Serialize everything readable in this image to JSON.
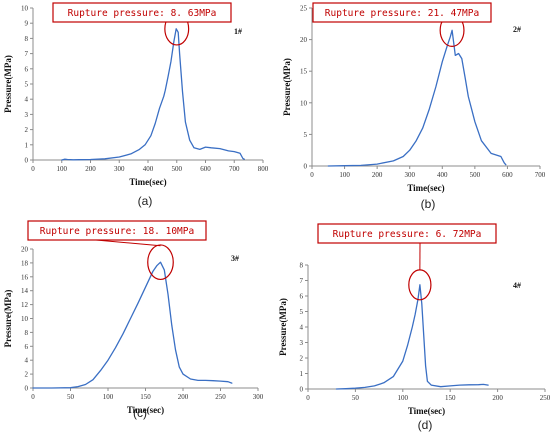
{
  "figure": {
    "colors": {
      "line": "#3a6fc4",
      "annotation": "#c00000",
      "axis": "#8c8c8c"
    }
  },
  "chart_data": [
    {
      "type": "line",
      "panel_tag": "(a)",
      "sample_id": "1#",
      "annotation": "Rupture pressure: 8. 63MPa",
      "xlabel": "Time(sec)",
      "ylabel": "Pressure(MPa)",
      "xlim": [
        0,
        800
      ],
      "ylim": [
        0,
        10
      ],
      "xticks": [
        0,
        100,
        200,
        300,
        400,
        500,
        600,
        700,
        800
      ],
      "yticks": [
        0,
        1,
        2,
        3,
        4,
        5,
        6,
        7,
        8,
        9,
        10
      ],
      "peak": [
        500,
        8.63
      ],
      "series": [
        {
          "x": [
            100,
            110,
            120,
            140,
            160,
            200,
            250,
            300,
            340,
            370,
            390,
            410,
            425,
            440,
            455,
            460,
            470,
            480,
            490,
            498,
            505,
            510,
            520,
            530,
            545,
            560,
            580,
            600,
            620,
            650,
            680,
            700,
            720,
            730,
            735
          ],
          "y": [
            0.0,
            0.05,
            0.03,
            0.01,
            0.02,
            0.03,
            0.08,
            0.2,
            0.4,
            0.7,
            1.0,
            1.6,
            2.4,
            3.4,
            4.2,
            4.6,
            5.5,
            6.5,
            7.8,
            8.63,
            8.4,
            7.0,
            4.5,
            2.5,
            1.3,
            0.8,
            0.7,
            0.85,
            0.8,
            0.75,
            0.6,
            0.55,
            0.45,
            0.1,
            0.05
          ]
        }
      ]
    },
    {
      "type": "line",
      "panel_tag": "(b)",
      "sample_id": "2#",
      "annotation": "Rupture pressure: 21. 47MPa",
      "xlabel": "Time(sec)",
      "ylabel": "Pressure(MPa)",
      "xlim": [
        0,
        700
      ],
      "ylim": [
        0,
        25
      ],
      "xticks": [
        0,
        100,
        200,
        300,
        400,
        500,
        600,
        700
      ],
      "yticks": [
        0,
        5,
        10,
        15,
        20,
        25
      ],
      "peak": [
        430,
        21.47
      ],
      "series": [
        {
          "x": [
            50,
            100,
            150,
            200,
            250,
            280,
            300,
            320,
            340,
            360,
            380,
            400,
            415,
            425,
            430,
            435,
            440,
            450,
            460,
            470,
            480,
            490,
            500,
            520,
            550,
            580,
            590,
            595
          ],
          "y": [
            0.0,
            0.05,
            0.1,
            0.3,
            0.8,
            1.5,
            2.5,
            4.0,
            6.0,
            9.0,
            12.5,
            16.5,
            19.0,
            20.5,
            21.47,
            19.5,
            17.5,
            17.8,
            17.0,
            14.0,
            11.0,
            9.0,
            7.0,
            4.0,
            2.0,
            1.5,
            0.5,
            0.2
          ]
        }
      ]
    },
    {
      "type": "line",
      "panel_tag": "(c)",
      "sample_id": "3#",
      "annotation": "Rupture pressure: 18. 10MPa",
      "xlabel": "Time(sec)",
      "ylabel": "Pressure(MPa)",
      "xlim": [
        0,
        300
      ],
      "ylim": [
        0,
        20
      ],
      "xticks": [
        0,
        50,
        100,
        150,
        200,
        250,
        300
      ],
      "yticks": [
        0,
        2,
        4,
        6,
        8,
        10,
        12,
        14,
        16,
        18,
        20
      ],
      "peak": [
        170,
        18.1
      ],
      "series": [
        {
          "x": [
            0,
            25,
            50,
            60,
            70,
            80,
            90,
            100,
            110,
            120,
            130,
            140,
            150,
            160,
            165,
            170,
            175,
            180,
            185,
            190,
            195,
            200,
            210,
            220,
            230,
            240,
            250,
            260,
            265
          ],
          "y": [
            0.0,
            0.0,
            0.05,
            0.2,
            0.5,
            1.2,
            2.5,
            4.0,
            5.8,
            7.8,
            10.0,
            12.2,
            14.5,
            16.8,
            17.6,
            18.1,
            17.0,
            13.5,
            9.0,
            5.5,
            3.0,
            2.0,
            1.3,
            1.1,
            1.1,
            1.05,
            1.0,
            0.9,
            0.7
          ]
        }
      ]
    },
    {
      "type": "line",
      "panel_tag": "(d)",
      "sample_id": "4#",
      "annotation": "Rupture pressure: 6. 72MPa",
      "xlabel": "Time(sec)",
      "ylabel": "Pressure(MPa)",
      "xlim": [
        0,
        250
      ],
      "ylim": [
        0,
        8
      ],
      "xticks": [
        0,
        50,
        100,
        150,
        200,
        250
      ],
      "yticks": [
        0,
        1,
        2,
        3,
        4,
        5,
        6,
        7,
        8
      ],
      "peak": [
        118,
        6.72
      ],
      "series": [
        {
          "x": [
            30,
            40,
            50,
            60,
            70,
            80,
            90,
            100,
            105,
            110,
            113,
            116,
            118,
            120,
            122,
            124,
            126,
            130,
            140,
            150,
            160,
            170,
            180,
            185,
            190
          ],
          "y": [
            0.0,
            0.02,
            0.05,
            0.1,
            0.2,
            0.4,
            0.8,
            1.8,
            2.8,
            4.0,
            4.8,
            5.8,
            6.72,
            5.5,
            3.5,
            1.5,
            0.5,
            0.25,
            0.15,
            0.2,
            0.25,
            0.27,
            0.28,
            0.3,
            0.25
          ]
        }
      ]
    }
  ]
}
